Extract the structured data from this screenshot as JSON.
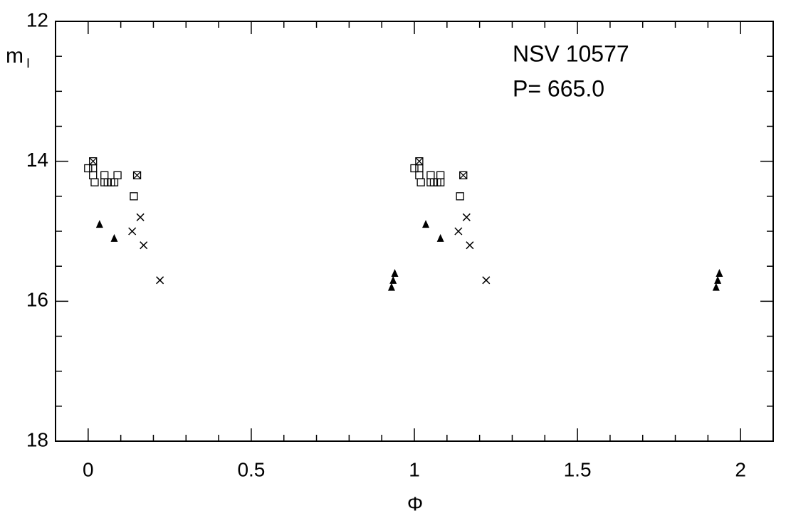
{
  "chart_data": {
    "type": "scatter",
    "annotations": [
      "NSV 10577",
      "P= 665.0"
    ],
    "xlabel": "Φ",
    "ylabel": "m",
    "ylabel_subscript": "I",
    "xlim": [
      -0.1,
      2.1
    ],
    "ylim": [
      18,
      12
    ],
    "inverted_y": true,
    "xticks": [
      0,
      0.5,
      1,
      1.5,
      2
    ],
    "yticks": [
      12,
      14,
      16,
      18
    ],
    "xminorticks": [
      -0.1,
      0.1,
      0.2,
      0.3,
      0.4,
      0.6,
      0.7,
      0.8,
      0.9,
      1.1,
      1.2,
      1.3,
      1.4,
      1.6,
      1.7,
      1.8,
      1.9,
      2.1
    ],
    "yminorticks": [
      12.5,
      13,
      13.5,
      14.5,
      15,
      15.5,
      16.5,
      17,
      17.5
    ],
    "series": [
      {
        "marker": "square",
        "color": "#000000",
        "x": [
          0.0,
          0.015,
          0.015,
          0.02,
          0.05,
          0.05,
          0.06,
          0.07,
          0.08,
          0.09,
          0.14,
          1.0,
          1.015,
          1.015,
          1.02,
          1.05,
          1.05,
          1.06,
          1.07,
          1.08,
          1.08,
          1.14
        ],
        "values": [
          14.1,
          14.1,
          14.2,
          14.3,
          14.2,
          14.3,
          14.3,
          14.3,
          14.3,
          14.2,
          14.5,
          14.1,
          14.1,
          14.2,
          14.3,
          14.2,
          14.3,
          14.3,
          14.3,
          14.3,
          14.2,
          14.5
        ]
      },
      {
        "marker": "cross",
        "color": "#000000",
        "x": [
          0.135,
          0.16,
          0.17,
          0.22,
          1.135,
          1.16,
          1.17,
          1.22
        ],
        "values": [
          15.0,
          14.8,
          15.2,
          15.7,
          15.0,
          14.8,
          15.2,
          15.7
        ]
      },
      {
        "marker": "crossed-square",
        "color": "#000000",
        "x": [
          0.015,
          0.15,
          1.015,
          1.15
        ],
        "values": [
          14.0,
          14.2,
          14.0,
          14.2
        ]
      },
      {
        "marker": "triangle",
        "color": "#000000",
        "x": [
          0.035,
          0.08,
          0.93,
          0.935,
          0.94,
          1.035,
          1.08,
          1.925,
          1.93,
          1.935
        ],
        "values": [
          14.9,
          15.1,
          15.8,
          15.7,
          15.6,
          14.9,
          15.1,
          15.8,
          15.7,
          15.6
        ]
      }
    ]
  }
}
